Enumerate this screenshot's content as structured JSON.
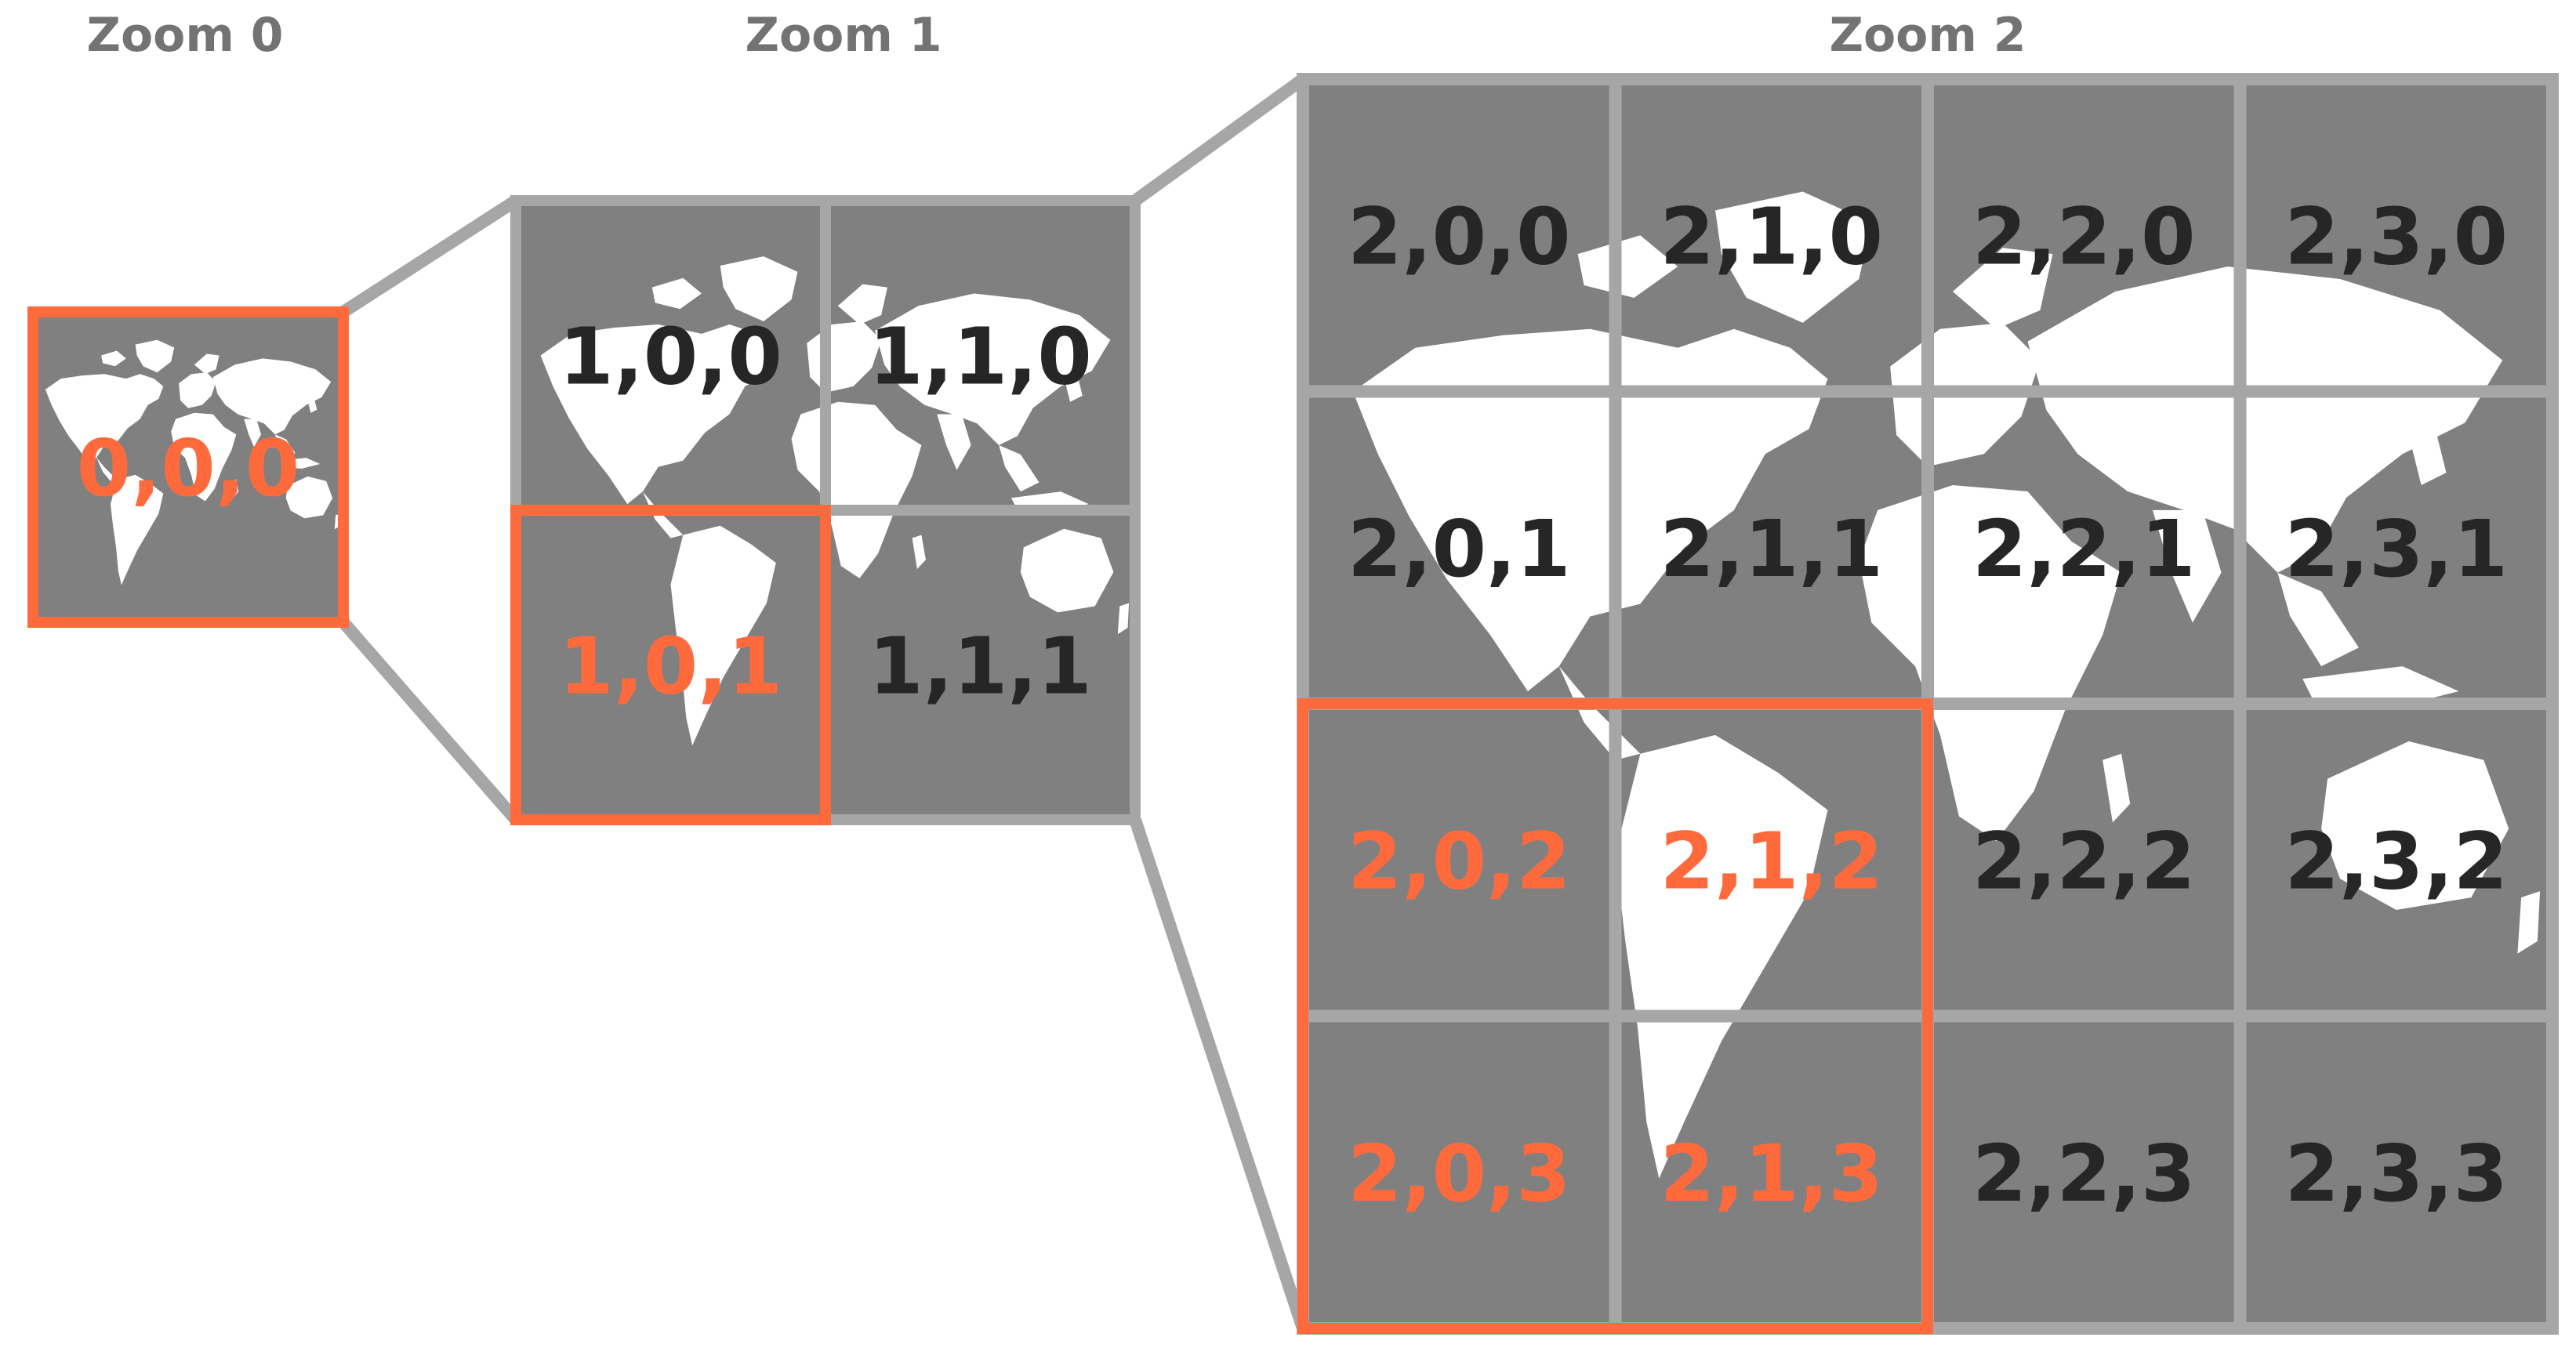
{
  "zoom_levels": [
    {
      "title": "Zoom 0",
      "tiles": [
        {
          "label": "0,0,0",
          "highlighted": true
        }
      ]
    },
    {
      "title": "Zoom 1",
      "tiles": [
        {
          "label": "1,0,0",
          "highlighted": false
        },
        {
          "label": "1,1,0",
          "highlighted": false
        },
        {
          "label": "1,0,1",
          "highlighted": true
        },
        {
          "label": "1,1,1",
          "highlighted": false
        }
      ]
    },
    {
      "title": "Zoom 2",
      "tiles": [
        {
          "label": "2,0,0",
          "highlighted": false
        },
        {
          "label": "2,1,0",
          "highlighted": false
        },
        {
          "label": "2,2,0",
          "highlighted": false
        },
        {
          "label": "2,3,0",
          "highlighted": false
        },
        {
          "label": "2,0,1",
          "highlighted": false
        },
        {
          "label": "2,1,1",
          "highlighted": false
        },
        {
          "label": "2,2,1",
          "highlighted": false
        },
        {
          "label": "2,3,1",
          "highlighted": false
        },
        {
          "label": "2,0,2",
          "highlighted": true
        },
        {
          "label": "2,1,2",
          "highlighted": true
        },
        {
          "label": "2,2,2",
          "highlighted": false
        },
        {
          "label": "2,3,2",
          "highlighted": false
        },
        {
          "label": "2,0,3",
          "highlighted": true
        },
        {
          "label": "2,1,3",
          "highlighted": true
        },
        {
          "label": "2,2,3",
          "highlighted": false
        },
        {
          "label": "2,3,3",
          "highlighted": false
        }
      ]
    }
  ],
  "colors": {
    "tile_fill": "#808080",
    "grid_line": "#a6a6a6",
    "land": "#ffffff",
    "label": "#262626",
    "highlight": "#ff6a3d",
    "title": "#737373"
  }
}
